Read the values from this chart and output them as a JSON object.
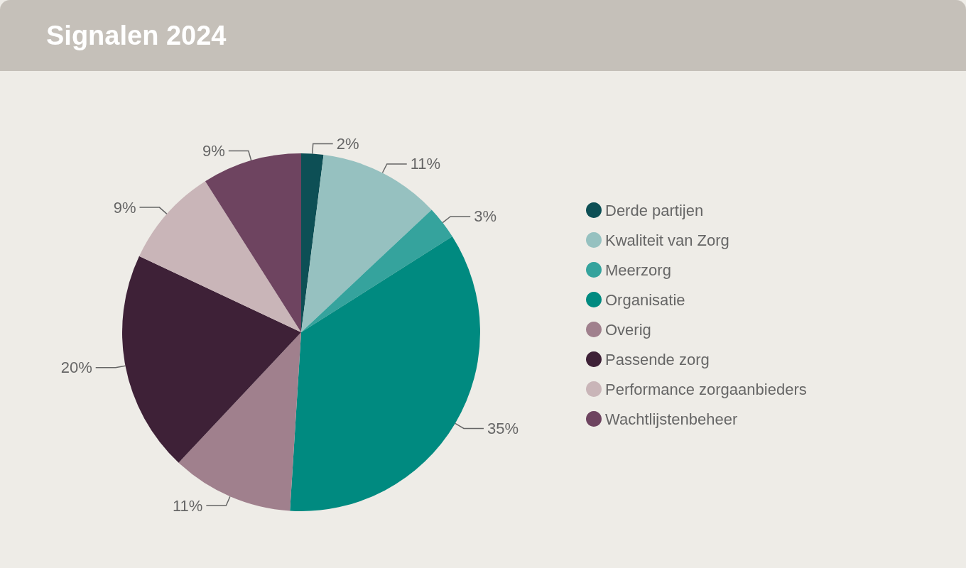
{
  "chart_data": {
    "type": "pie",
    "title": "Signalen 2024",
    "categories": [
      "Derde partijen",
      "Kwaliteit van Zorg",
      "Meerzorg",
      "Organisatie",
      "Overig",
      "Passende zorg",
      "Performance zorgaanbieders",
      "Wachtlijstenbeheer"
    ],
    "values": [
      2,
      11,
      3,
      35,
      11,
      20,
      9,
      9
    ],
    "colors": [
      "#0d4f55",
      "#96c1c0",
      "#35a39d",
      "#008a80",
      "#a0808d",
      "#3e2137",
      "#c9b5b8",
      "#6e4460"
    ],
    "value_labels": [
      "2%",
      "11%",
      "3%",
      "35%",
      "11%",
      "20%",
      "9%",
      "9%"
    ],
    "legend": "right"
  }
}
